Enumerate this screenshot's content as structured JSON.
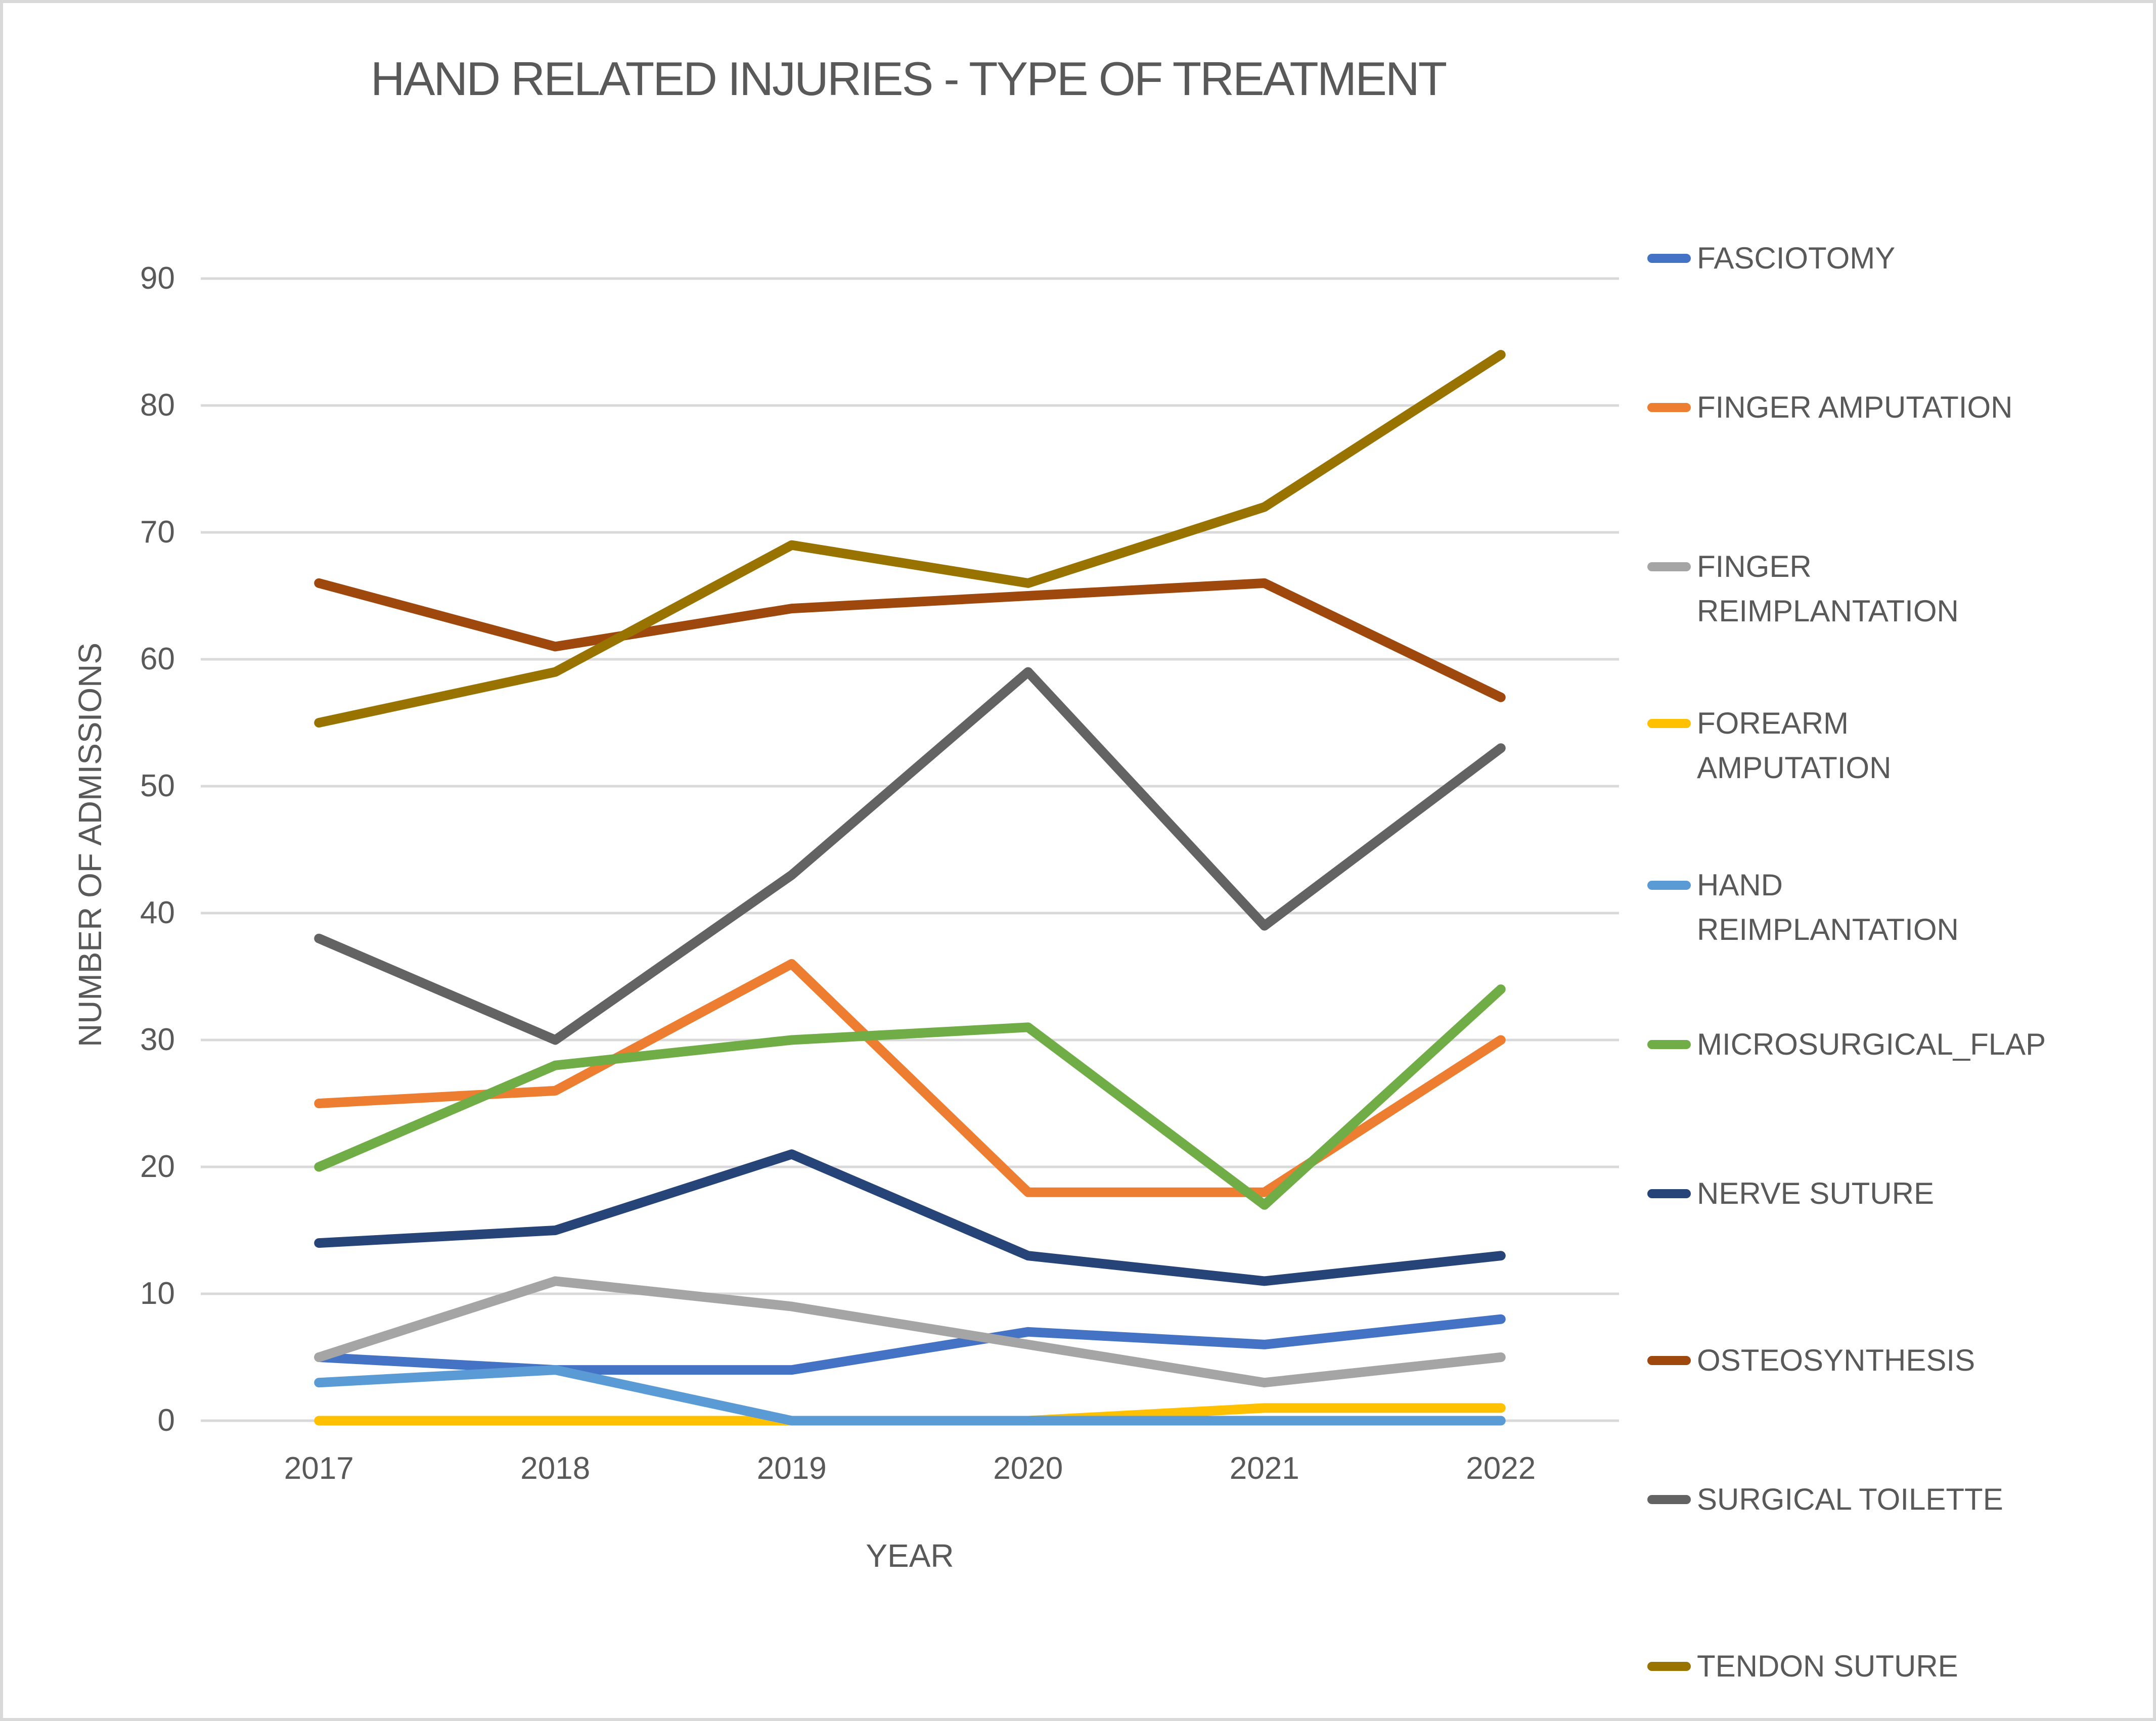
{
  "chart_data": {
    "type": "line",
    "title": "HAND RELATED INJURIES - TYPE OF TREATMENT",
    "xlabel": "YEAR",
    "ylabel": "NUMBER OF ADMISSIONS",
    "categories": [
      "2017",
      "2018",
      "2019",
      "2020",
      "2021",
      "2022"
    ],
    "y_ticks": [
      0,
      10,
      20,
      30,
      40,
      50,
      60,
      70,
      80,
      90
    ],
    "ylim": [
      0,
      90
    ],
    "grid": true,
    "legend_position": "right",
    "series": [
      {
        "name": "FASCIOTOMY",
        "label_lines": [
          "FASCIOTOMY"
        ],
        "color": "#4472C4",
        "values": [
          5,
          4,
          4,
          7,
          6,
          8
        ]
      },
      {
        "name": "FINGER AMPUTATION",
        "label_lines": [
          "FINGER AMPUTATION"
        ],
        "color": "#ED7D31",
        "values": [
          25,
          26,
          36,
          18,
          18,
          30
        ]
      },
      {
        "name": "FINGER REIMPLANTATION",
        "label_lines": [
          "FINGER",
          "REIMPLANTATION"
        ],
        "color": "#A5A5A5",
        "values": [
          5,
          11,
          9,
          6,
          3,
          5
        ]
      },
      {
        "name": "FOREARM AMPUTATION",
        "label_lines": [
          "FOREARM",
          "AMPUTATION"
        ],
        "color": "#FFC000",
        "values": [
          0,
          0,
          0,
          0,
          1,
          1
        ]
      },
      {
        "name": "HAND REIMPLANTATION",
        "label_lines": [
          "HAND",
          "REIMPLANTATION"
        ],
        "color": "#5B9BD5",
        "values": [
          3,
          4,
          0,
          0,
          0,
          0
        ]
      },
      {
        "name": "MICROSURGICAL_FLAP",
        "label_lines": [
          "MICROSURGICAL_FLAP"
        ],
        "color": "#70AD47",
        "values": [
          20,
          28,
          30,
          31,
          17,
          34
        ]
      },
      {
        "name": "NERVE SUTURE",
        "label_lines": [
          "NERVE SUTURE"
        ],
        "color": "#264478",
        "values": [
          14,
          15,
          21,
          13,
          11,
          13
        ]
      },
      {
        "name": "OSTEOSYNTHESIS",
        "label_lines": [
          "OSTEOSYNTHESIS"
        ],
        "color": "#9E480E",
        "values": [
          66,
          61,
          64,
          65,
          66,
          57
        ]
      },
      {
        "name": "SURGICAL TOILETTE",
        "label_lines": [
          "SURGICAL TOILETTE"
        ],
        "color": "#636363",
        "values": [
          38,
          30,
          43,
          59,
          39,
          53
        ]
      },
      {
        "name": "TENDON SUTURE",
        "label_lines": [
          "TENDON SUTURE"
        ],
        "color": "#997300",
        "values": [
          55,
          59,
          69,
          66,
          72,
          84
        ]
      }
    ],
    "colors": {
      "text": "#595959",
      "grid": "#D9D9D9",
      "border": "#D9D9D9",
      "background": "#FFFFFF"
    }
  }
}
